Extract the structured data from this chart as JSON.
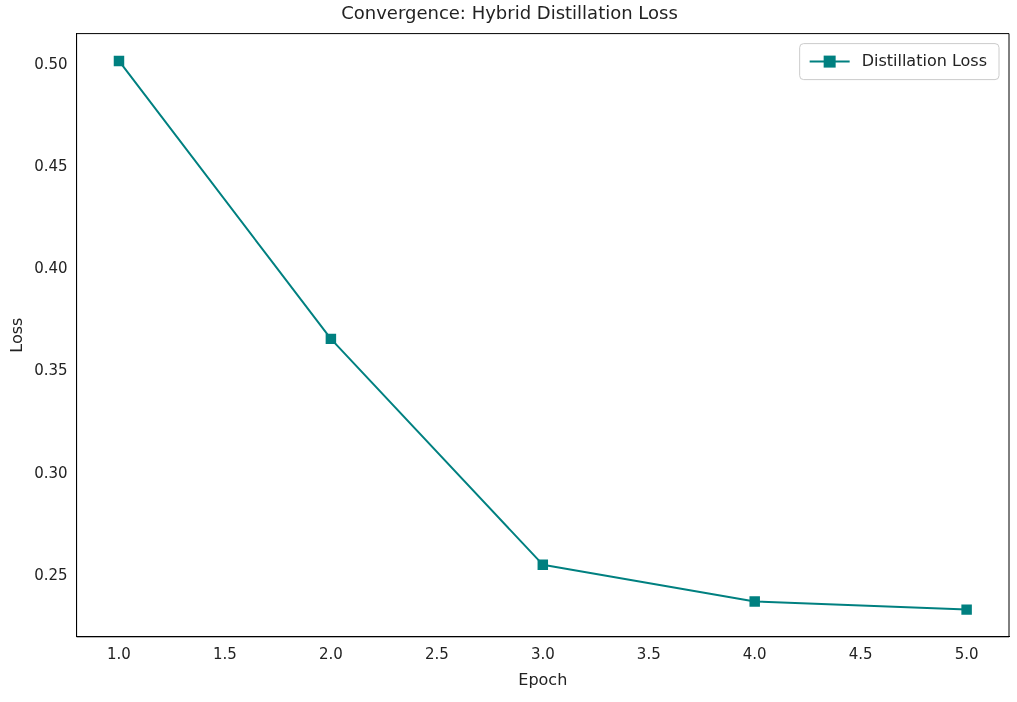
{
  "chart_data": {
    "type": "line",
    "title": "Convergence: Hybrid Distillation Loss",
    "xlabel": "Epoch",
    "ylabel": "Loss",
    "x": [
      1,
      2,
      3,
      4,
      5
    ],
    "series": [
      {
        "name": "Distillation Loss",
        "color": "#008080",
        "values": [
          0.502,
          0.366,
          0.2555,
          0.2375,
          0.2335
        ]
      }
    ],
    "xlim": [
      0.8,
      5.2
    ],
    "xticks": [
      {
        "value": 1,
        "label": "1.0"
      },
      {
        "value": 1.5,
        "label": "1.5"
      },
      {
        "value": 2,
        "label": "2.0"
      },
      {
        "value": 2.5,
        "label": "2.5"
      },
      {
        "value": 3,
        "label": "3.0"
      },
      {
        "value": 3.5,
        "label": "3.5"
      },
      {
        "value": 4,
        "label": "4.0"
      },
      {
        "value": 4.5,
        "label": "4.5"
      },
      {
        "value": 5,
        "label": "5.0"
      }
    ],
    "ylim": [
      0.2202,
      0.5154
    ],
    "yticks": [
      {
        "value": 0.25,
        "label": "0.25"
      },
      {
        "value": 0.3,
        "label": "0.30"
      },
      {
        "value": 0.35,
        "label": "0.35"
      },
      {
        "value": 0.4,
        "label": "0.40"
      },
      {
        "value": 0.45,
        "label": "0.45"
      },
      {
        "value": 0.5,
        "label": "0.50"
      }
    ],
    "legend": "top right",
    "marker": "square",
    "line_style": "solid",
    "grid": false
  }
}
